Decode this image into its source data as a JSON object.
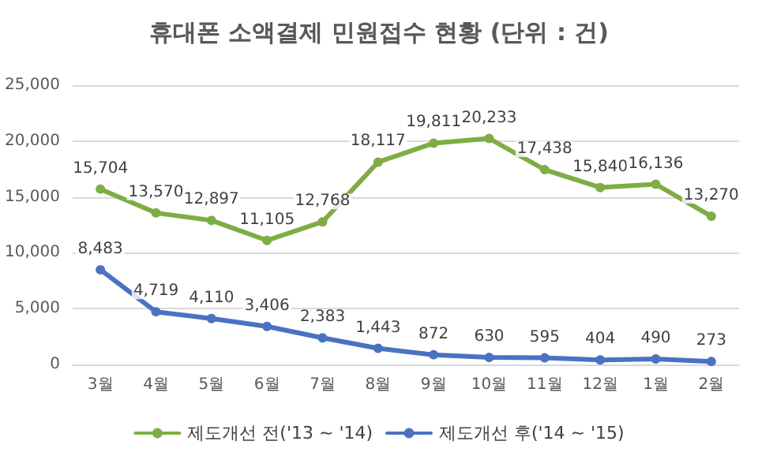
{
  "chart_data": {
    "type": "line",
    "title": "휴대폰 소액결제 민원접수 현황 (단위 : 건)",
    "categories": [
      "3월",
      "4월",
      "5월",
      "6월",
      "7월",
      "8월",
      "9월",
      "10월",
      "11월",
      "12월",
      "1월",
      "2월"
    ],
    "series": [
      {
        "name": "제도개선 전('13 ~ '14)",
        "color": "#7fad45",
        "values": [
          15704,
          13570,
          12897,
          11105,
          12768,
          18117,
          19811,
          20233,
          17438,
          15840,
          16136,
          13270
        ],
        "value_labels": [
          "15,704",
          "13,570",
          "12,897",
          "11,105",
          "12,768",
          "18,117",
          "19,811",
          "20,233",
          "17,438",
          "15,840",
          "16,136",
          "13,270"
        ]
      },
      {
        "name": "제도개선 후('14 ~ '15)",
        "color": "#4a72c2",
        "values": [
          8483,
          4719,
          4110,
          3406,
          2383,
          1443,
          872,
          630,
          595,
          404,
          490,
          273
        ],
        "value_labels": [
          "8,483",
          "4,719",
          "4,110",
          "3,406",
          "2,383",
          "1,443",
          "872",
          "630",
          "595",
          "404",
          "490",
          "273"
        ]
      }
    ],
    "ylim": [
      0,
      25000
    ],
    "yticks": [
      0,
      {
        "value": 5000,
        "label": "5,000"
      },
      {
        "value": 10000,
        "label": "10,000"
      },
      {
        "value": 15000,
        "label": "15,000"
      },
      {
        "value": 20000,
        "label": "20,000"
      },
      {
        "value": 25000,
        "label": "25,000"
      }
    ],
    "grid": "y",
    "legend": "bottom",
    "marker": "circle",
    "line_style": "solid"
  }
}
